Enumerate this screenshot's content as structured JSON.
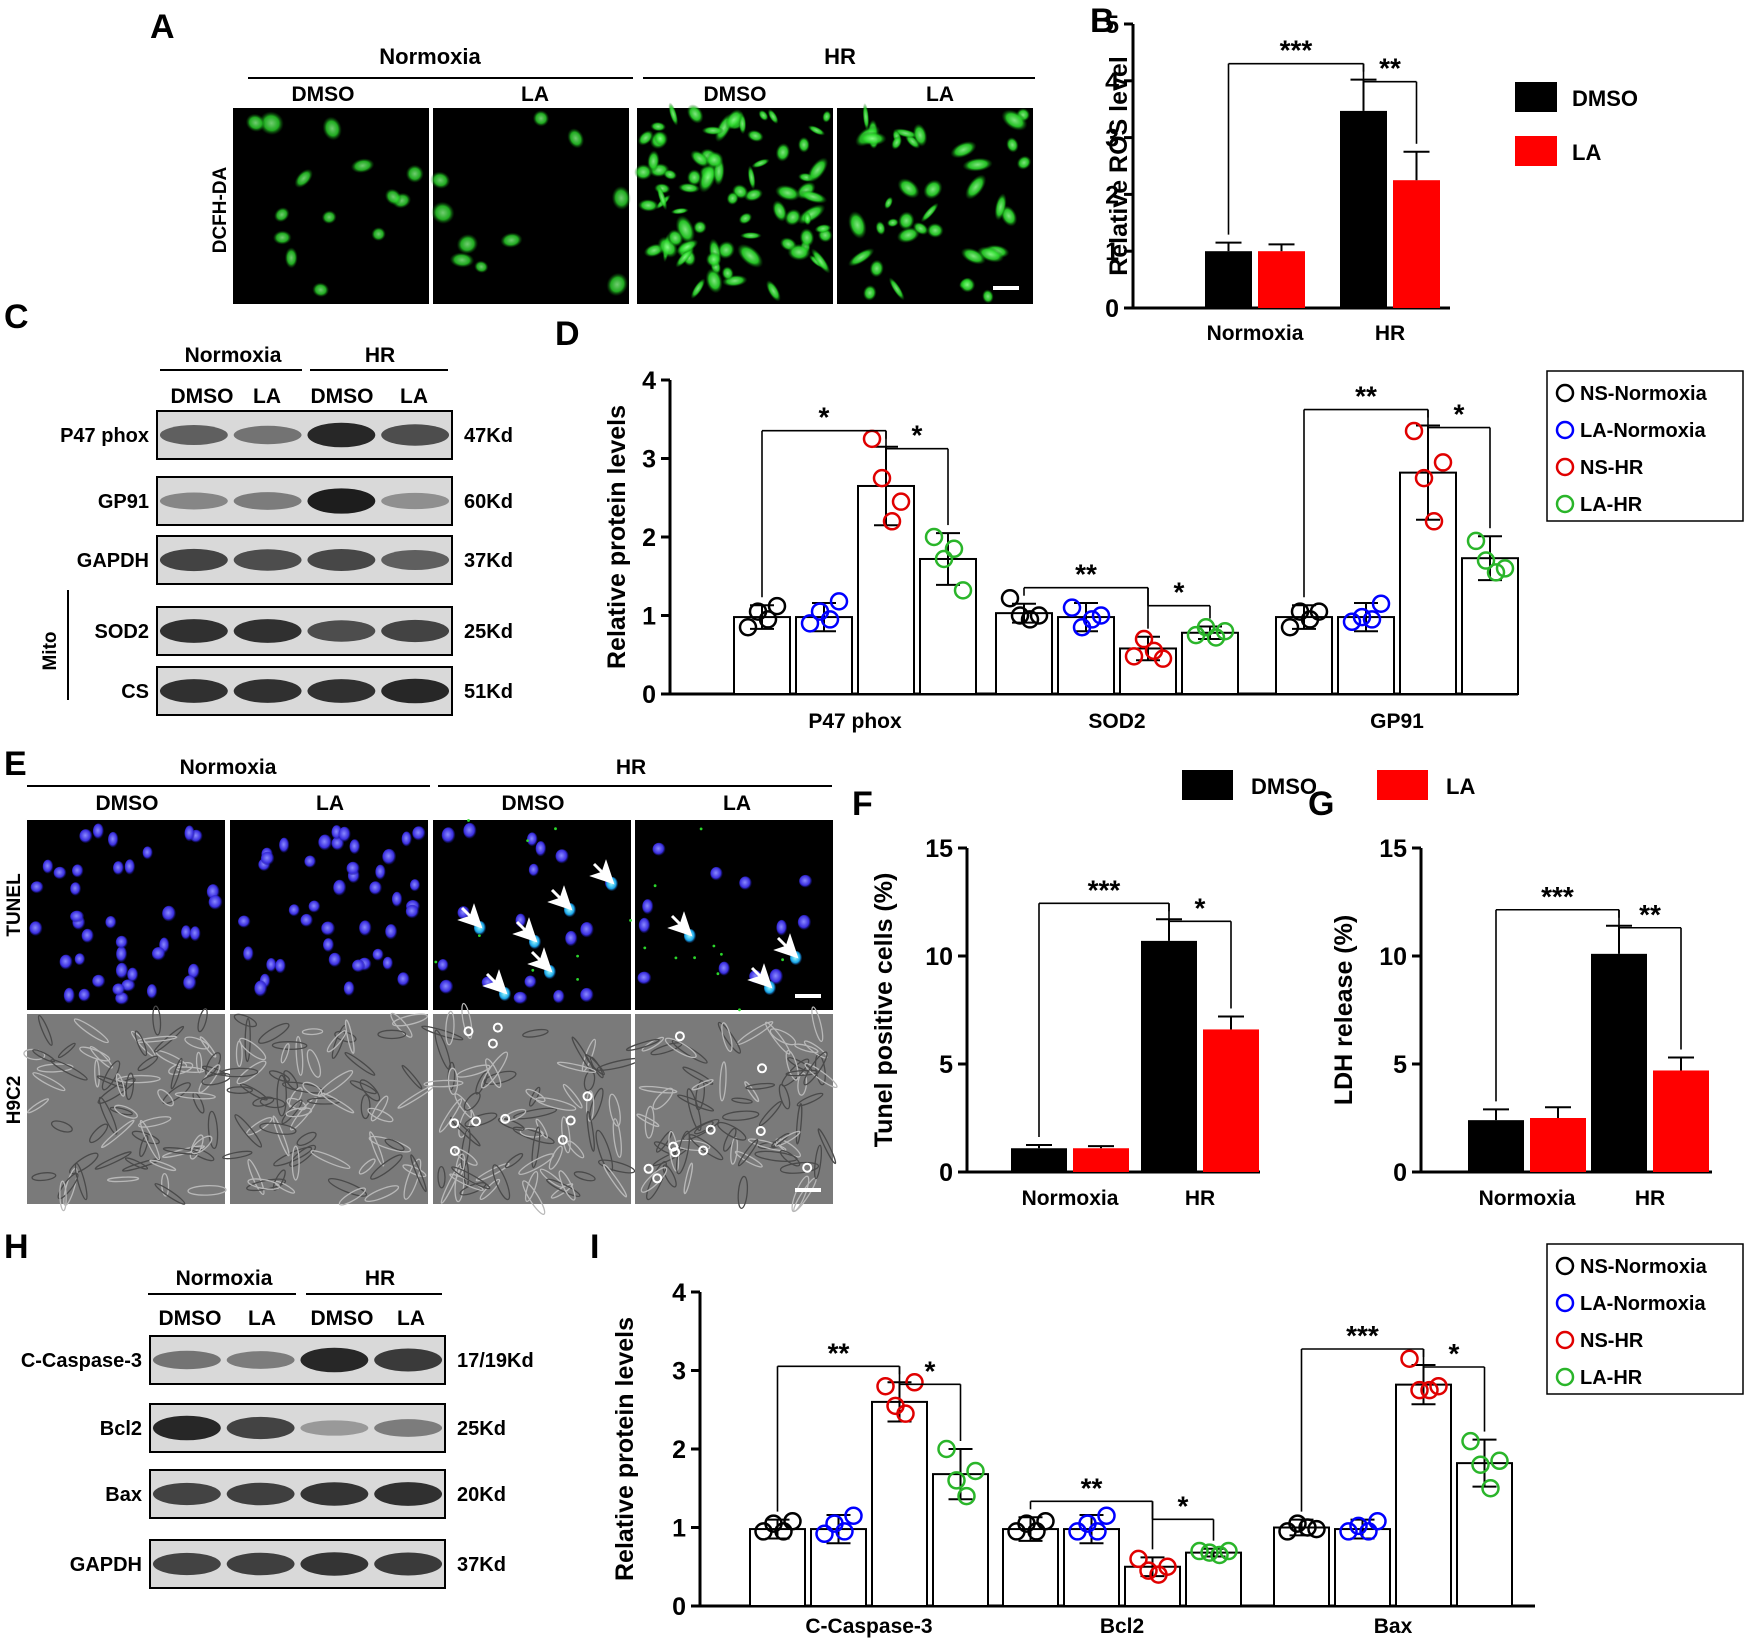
{
  "panels": {
    "A": {
      "letter": "A",
      "group_labels": [
        "Normoxia",
        "HR"
      ],
      "column_labels": [
        "DMSO",
        "LA",
        "DMSO",
        "LA"
      ],
      "row_label": "DCFH-DA"
    },
    "C": {
      "letter": "C",
      "group_labels": [
        "Normoxia",
        "HR"
      ],
      "lane_labels": [
        "DMSO",
        "LA",
        "DMSO",
        "LA"
      ],
      "side_label": "Mito",
      "blots": [
        {
          "name": "P47 phox",
          "size": "47Kd",
          "intensity": [
            0.55,
            0.45,
            0.85,
            0.65
          ]
        },
        {
          "name": "GP91",
          "size": "60Kd",
          "intensity": [
            0.35,
            0.4,
            0.9,
            0.3
          ]
        },
        {
          "name": "GAPDH",
          "size": "37Kd",
          "intensity": [
            0.7,
            0.65,
            0.68,
            0.55
          ]
        },
        {
          "name": "SOD2",
          "size": "25Kd",
          "intensity": [
            0.8,
            0.8,
            0.65,
            0.7
          ]
        },
        {
          "name": "CS",
          "size": "51Kd",
          "intensity": [
            0.8,
            0.8,
            0.8,
            0.85
          ]
        }
      ]
    },
    "E": {
      "letter": "E",
      "group_labels": [
        "Normoxia",
        "HR"
      ],
      "column_labels": [
        "DMSO",
        "LA",
        "DMSO",
        "LA"
      ],
      "row_labels": [
        "TUNEL",
        "H9C2"
      ]
    },
    "H": {
      "letter": "H",
      "group_labels": [
        "Normoxia",
        "HR"
      ],
      "lane_labels": [
        "DMSO",
        "LA",
        "DMSO",
        "LA"
      ],
      "blots": [
        {
          "name": "C-Caspase-3",
          "size": "17/19Kd",
          "intensity": [
            0.45,
            0.4,
            0.85,
            0.75
          ]
        },
        {
          "name": "Bcl2",
          "size": "25Kd",
          "intensity": [
            0.85,
            0.7,
            0.25,
            0.4
          ]
        },
        {
          "name": "Bax",
          "size": "20Kd",
          "intensity": [
            0.7,
            0.72,
            0.78,
            0.8
          ]
        },
        {
          "name": "GAPDH",
          "size": "37Kd",
          "intensity": [
            0.7,
            0.72,
            0.78,
            0.75
          ]
        }
      ]
    }
  },
  "chart_data": [
    {
      "id": "B",
      "letter": "B",
      "type": "bar",
      "ylabel": "Relative ROS level",
      "ylim": [
        0,
        5
      ],
      "yticks": [
        0,
        1,
        2,
        3,
        4,
        5
      ],
      "categories": [
        "Normoxia",
        "HR"
      ],
      "series": [
        {
          "name": "DMSO",
          "color": "#000000",
          "values": [
            1.0,
            3.47
          ],
          "errors": [
            0.15,
            0.55
          ]
        },
        {
          "name": "LA",
          "color": "#ff0000",
          "values": [
            1.0,
            2.25
          ],
          "errors": [
            0.12,
            0.5
          ]
        }
      ],
      "legend": "right",
      "significance": [
        {
          "label": "***",
          "from": "Normoxia-DMSO",
          "to": "HR-DMSO"
        },
        {
          "label": "**",
          "from": "HR-DMSO",
          "to": "HR-LA"
        }
      ]
    },
    {
      "id": "D",
      "letter": "D",
      "type": "bar",
      "ylabel": "Relative protein levels",
      "ylim": [
        0,
        4
      ],
      "yticks": [
        0,
        1,
        2,
        3,
        4
      ],
      "categories": [
        "P47 phox",
        "SOD2",
        "GP91"
      ],
      "series": [
        {
          "name": "NS-Normoxia",
          "color": "#000000",
          "values": [
            0.98,
            1.03,
            0.98
          ],
          "errors": [
            0.15,
            0.12,
            0.15
          ],
          "points": [
            [
              0.85,
              1.05,
              0.95,
              1.12
            ],
            [
              1.22,
              1.0,
              0.95,
              1.0
            ],
            [
              0.85,
              1.05,
              0.95,
              1.05
            ]
          ]
        },
        {
          "name": "LA-Normoxia",
          "color": "#0000ff",
          "values": [
            0.98,
            0.98,
            0.98
          ],
          "errors": [
            0.18,
            0.18,
            0.18
          ],
          "points": [
            [
              0.9,
              1.05,
              0.95,
              1.18
            ],
            [
              1.1,
              0.85,
              0.95,
              1.0
            ],
            [
              0.92,
              0.98,
              0.95,
              1.15
            ]
          ]
        },
        {
          "name": "NS-HR",
          "color": "#e00000",
          "values": [
            2.65,
            0.58,
            2.82
          ],
          "errors": [
            0.5,
            0.15,
            0.6
          ],
          "points": [
            [
              3.25,
              2.75,
              2.2,
              2.45
            ],
            [
              0.48,
              0.7,
              0.55,
              0.45
            ],
            [
              3.35,
              2.75,
              2.2,
              2.95
            ]
          ]
        },
        {
          "name": "LA-HR",
          "color": "#2ab52a",
          "values": [
            1.72,
            0.78,
            1.73
          ],
          "errors": [
            0.33,
            0.08,
            0.28
          ],
          "points": [
            [
              2.0,
              1.72,
              1.85,
              1.32
            ],
            [
              0.75,
              0.85,
              0.72,
              0.8
            ],
            [
              1.95,
              1.7,
              1.55,
              1.6
            ]
          ]
        }
      ],
      "legend": "right",
      "significance": [
        {
          "label": "*",
          "group": "P47 phox",
          "from": "NS-Normoxia",
          "to": "NS-HR"
        },
        {
          "label": "*",
          "group": "P47 phox",
          "from": "NS-HR",
          "to": "LA-HR"
        },
        {
          "label": "**",
          "group": "SOD2",
          "from": "NS-Normoxia",
          "to": "NS-HR"
        },
        {
          "label": "*",
          "group": "SOD2",
          "from": "NS-HR",
          "to": "LA-HR"
        },
        {
          "label": "**",
          "group": "GP91",
          "from": "NS-Normoxia",
          "to": "NS-HR"
        },
        {
          "label": "*",
          "group": "GP91",
          "from": "NS-HR",
          "to": "LA-HR"
        }
      ]
    },
    {
      "id": "F",
      "letter": "F",
      "type": "bar",
      "ylabel": "Tunel positive cells (%)",
      "ylim": [
        0,
        15
      ],
      "yticks": [
        0,
        5,
        10,
        15
      ],
      "categories": [
        "Normoxia",
        "HR"
      ],
      "series": [
        {
          "name": "DMSO",
          "color": "#000000",
          "values": [
            1.1,
            10.7
          ],
          "errors": [
            0.15,
            1.0
          ]
        },
        {
          "name": "LA",
          "color": "#ff0000",
          "values": [
            1.1,
            6.6
          ],
          "errors": [
            0.1,
            0.6
          ]
        }
      ],
      "legend": "top",
      "significance": [
        {
          "label": "***",
          "from": "Normoxia-DMSO",
          "to": "HR-DMSO"
        },
        {
          "label": "*",
          "from": "HR-DMSO",
          "to": "HR-LA"
        }
      ]
    },
    {
      "id": "G",
      "letter": "G",
      "type": "bar",
      "ylabel": "LDH release (%)",
      "ylim": [
        0,
        15
      ],
      "yticks": [
        0,
        5,
        10,
        15
      ],
      "categories": [
        "Normoxia",
        "HR"
      ],
      "series": [
        {
          "name": "DMSO",
          "color": "#000000",
          "values": [
            2.4,
            10.1
          ],
          "errors": [
            0.5,
            1.3
          ]
        },
        {
          "name": "LA",
          "color": "#ff0000",
          "values": [
            2.5,
            4.7
          ],
          "errors": [
            0.5,
            0.6
          ]
        }
      ],
      "significance": [
        {
          "label": "***",
          "from": "Normoxia-DMSO",
          "to": "HR-DMSO"
        },
        {
          "label": "**",
          "from": "HR-DMSO",
          "to": "HR-LA"
        }
      ]
    },
    {
      "id": "I",
      "letter": "I",
      "type": "bar",
      "ylabel": "Relative protein levels",
      "ylim": [
        0,
        4
      ],
      "yticks": [
        0,
        1,
        2,
        3,
        4
      ],
      "categories": [
        "C-Caspase-3",
        "Bcl2",
        "Bax"
      ],
      "series": [
        {
          "name": "NS-Normoxia",
          "color": "#000000",
          "values": [
            0.98,
            0.98,
            1.0
          ],
          "errors": [
            0.12,
            0.15,
            0.1
          ],
          "points": [
            [
              0.95,
              1.05,
              0.95,
              1.08
            ],
            [
              0.95,
              1.05,
              0.95,
              1.08
            ],
            [
              0.95,
              1.05,
              1.0,
              0.98
            ]
          ]
        },
        {
          "name": "LA-Normoxia",
          "color": "#0000ff",
          "values": [
            0.98,
            0.98,
            0.98
          ],
          "errors": [
            0.18,
            0.18,
            0.12
          ],
          "points": [
            [
              0.92,
              1.05,
              0.95,
              1.15
            ],
            [
              0.95,
              1.05,
              0.95,
              1.15
            ],
            [
              0.95,
              1.02,
              0.95,
              1.08
            ]
          ]
        },
        {
          "name": "NS-HR",
          "color": "#e00000",
          "values": [
            2.6,
            0.5,
            2.82
          ],
          "errors": [
            0.25,
            0.12,
            0.25
          ],
          "points": [
            [
              2.8,
              2.55,
              2.45,
              2.85
            ],
            [
              0.6,
              0.45,
              0.4,
              0.5
            ],
            [
              3.15,
              2.75,
              2.75,
              2.8
            ]
          ]
        },
        {
          "name": "LA-HR",
          "color": "#2ab52a",
          "values": [
            1.68,
            0.68,
            1.82
          ],
          "errors": [
            0.32,
            0.05,
            0.3
          ],
          "points": [
            [
              2.0,
              1.6,
              1.4,
              1.72
            ],
            [
              0.7,
              0.68,
              0.65,
              0.7
            ],
            [
              2.1,
              1.8,
              1.5,
              1.85
            ]
          ]
        }
      ],
      "legend": "right",
      "significance": [
        {
          "label": "**",
          "group": "C-Caspase-3",
          "from": "NS-Normoxia",
          "to": "NS-HR"
        },
        {
          "label": "*",
          "group": "C-Caspase-3",
          "from": "NS-HR",
          "to": "LA-HR"
        },
        {
          "label": "**",
          "group": "Bcl2",
          "from": "NS-Normoxia",
          "to": "NS-HR"
        },
        {
          "label": "*",
          "group": "Bcl2",
          "from": "NS-HR",
          "to": "LA-HR"
        },
        {
          "label": "***",
          "group": "Bax",
          "from": "NS-Normoxia",
          "to": "NS-HR"
        },
        {
          "label": "*",
          "group": "Bax",
          "from": "NS-HR",
          "to": "LA-HR"
        }
      ]
    }
  ]
}
